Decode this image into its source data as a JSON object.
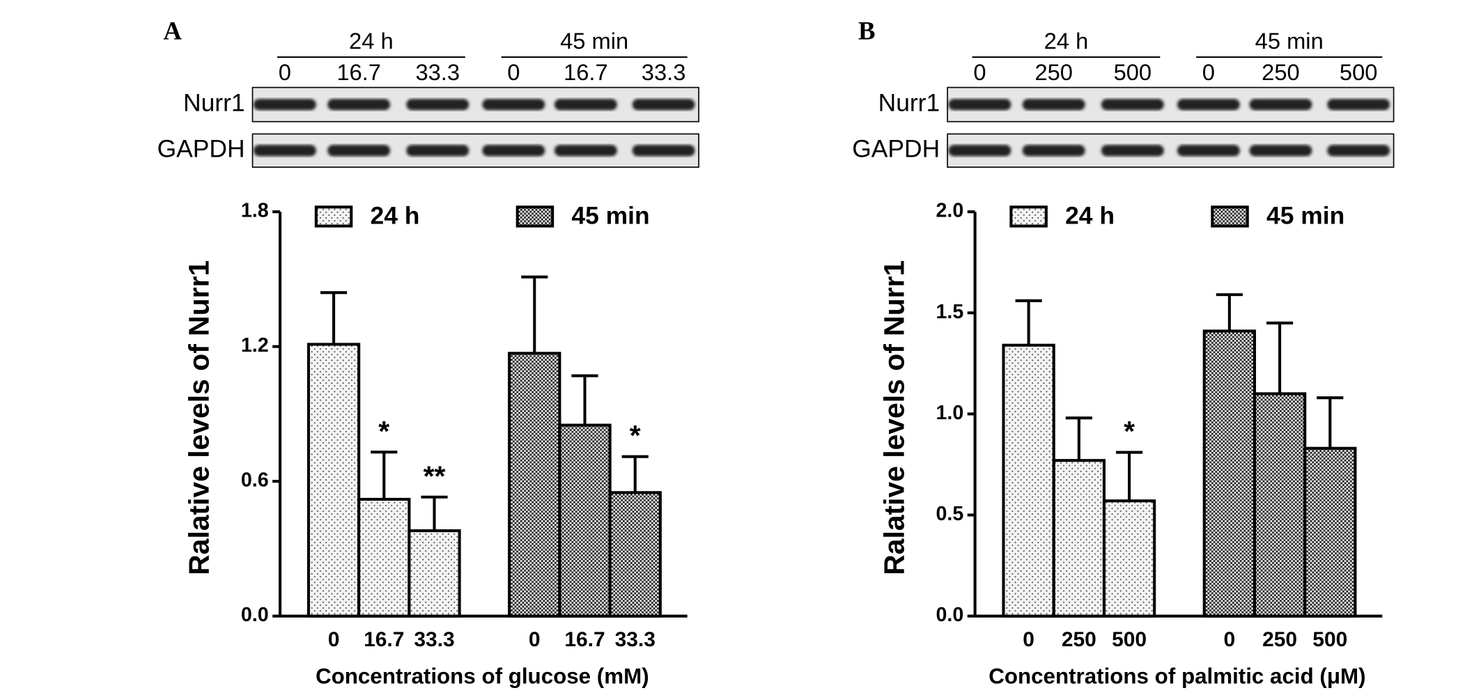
{
  "chart_data": [
    {
      "type": "bar",
      "panel": "A",
      "blot": {
        "groups": [
          "24 h",
          "45 min"
        ],
        "lanes": [
          "0",
          "16.7",
          "33.3",
          "0",
          "16.7",
          "33.3"
        ],
        "rows": [
          "Nurr1",
          "GAPDH"
        ]
      },
      "categories": [
        "0",
        "16.7",
        "33.3"
      ],
      "series": [
        {
          "name": "24 h",
          "pattern": "dots",
          "values": [
            1.21,
            0.52,
            0.38
          ],
          "errors": [
            0.23,
            0.21,
            0.15
          ],
          "annotations": [
            null,
            "*",
            "**"
          ]
        },
        {
          "name": "45 min",
          "pattern": "checker",
          "values": [
            1.17,
            0.85,
            0.55
          ],
          "errors": [
            0.34,
            0.22,
            0.16
          ],
          "annotations": [
            null,
            null,
            "*"
          ]
        }
      ],
      "xlabel": "Concentrations of glucose (mM)",
      "ylabel": "Ralative levels of Nurr1",
      "ylim": [
        0,
        1.8
      ],
      "yticks": [
        {
          "value": 0,
          "label": "0.0"
        },
        0.6,
        1.2,
        1.8
      ]
    },
    {
      "type": "bar",
      "panel": "B",
      "blot": {
        "groups": [
          "24 h",
          "45 min"
        ],
        "lanes": [
          "0",
          "250",
          "500",
          "0",
          "250",
          "500"
        ],
        "rows": [
          "Nurr1",
          "GAPDH"
        ]
      },
      "categories": [
        "0",
        "250",
        "500"
      ],
      "series": [
        {
          "name": "24 h",
          "pattern": "dots",
          "values": [
            1.34,
            0.77,
            0.57
          ],
          "errors": [
            0.22,
            0.21,
            0.24
          ],
          "annotations": [
            null,
            null,
            "*"
          ]
        },
        {
          "name": "45 min",
          "pattern": "checker",
          "values": [
            1.41,
            1.1,
            0.83
          ],
          "errors": [
            0.18,
            0.35,
            0.25
          ],
          "annotations": [
            null,
            null,
            null
          ]
        }
      ],
      "xlabel": "Concentrations of palmitic acid (μM)",
      "ylabel": "Ralative levels of Nurr1",
      "ylim": [
        0,
        2.0
      ],
      "yticks": [
        {
          "value": 0,
          "label": "0.0"
        },
        0.5,
        {
          "value": 1,
          "label": "1.0"
        },
        1.5,
        {
          "value": 2,
          "label": "2.0"
        }
      ]
    }
  ]
}
